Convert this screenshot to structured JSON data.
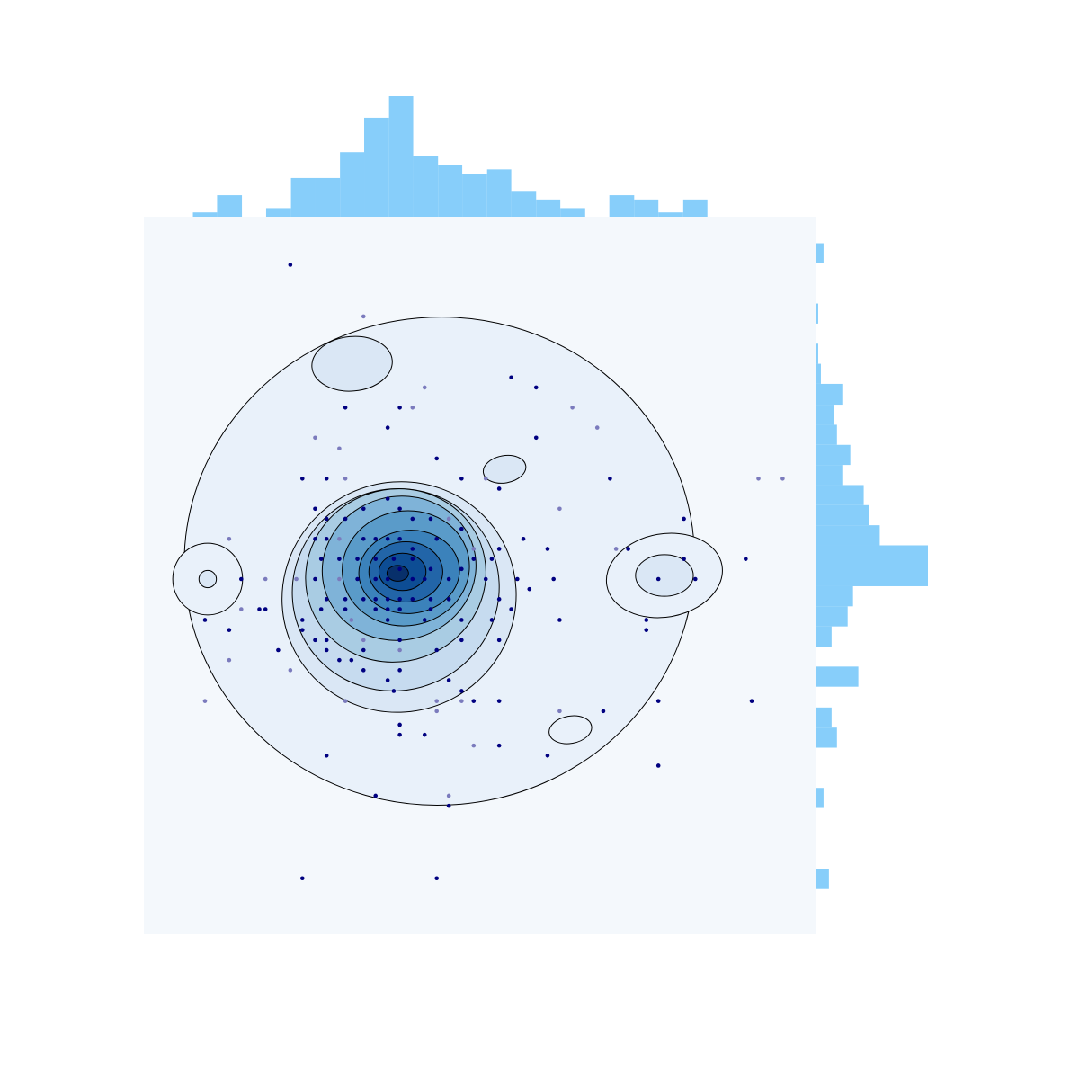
{
  "chart_data": {
    "type": "scatter",
    "title": "",
    "xlabel": "",
    "ylabel": "",
    "grid": false,
    "legend": "none",
    "colors": {
      "plot_background": "#f4f8fc",
      "histogram": "#87cefa",
      "point_dark": "#000080",
      "point_light": "#7b7bbd",
      "contour_line": "#000000",
      "density_levels": [
        "#e9f1fa",
        "#dae7f5",
        "#c6dbef",
        "#a9cce3",
        "#7fb3d8",
        "#5a9bc9",
        "#3b82bb",
        "#2265a8",
        "#0d4d94",
        "#08306b"
      ]
    },
    "xlim": [
      0,
      100
    ],
    "ylim": [
      0,
      100
    ],
    "points": [
      {
        "x": 21.8,
        "y": 93.3,
        "shade": "dark"
      },
      {
        "x": 32.7,
        "y": 86.1,
        "shade": "light"
      },
      {
        "x": 54.7,
        "y": 77.6,
        "shade": "dark"
      },
      {
        "x": 58.4,
        "y": 76.2,
        "shade": "dark"
      },
      {
        "x": 41.8,
        "y": 76.2,
        "shade": "light"
      },
      {
        "x": 63.8,
        "y": 73.4,
        "shade": "light"
      },
      {
        "x": 67.5,
        "y": 70.6,
        "shade": "light"
      },
      {
        "x": 30.0,
        "y": 73.4,
        "shade": "dark"
      },
      {
        "x": 38.1,
        "y": 73.4,
        "shade": "dark"
      },
      {
        "x": 40.0,
        "y": 73.4,
        "shade": "light"
      },
      {
        "x": 36.3,
        "y": 70.6,
        "shade": "dark"
      },
      {
        "x": 25.5,
        "y": 69.2,
        "shade": "light"
      },
      {
        "x": 29.1,
        "y": 67.7,
        "shade": "light"
      },
      {
        "x": 58.4,
        "y": 69.2,
        "shade": "dark"
      },
      {
        "x": 43.6,
        "y": 66.3,
        "shade": "dark"
      },
      {
        "x": 47.3,
        "y": 63.5,
        "shade": "dark"
      },
      {
        "x": 50.9,
        "y": 63.5,
        "shade": "light"
      },
      {
        "x": 52.9,
        "y": 62.1,
        "shade": "dark"
      },
      {
        "x": 23.6,
        "y": 63.5,
        "shade": "dark"
      },
      {
        "x": 27.2,
        "y": 63.5,
        "shade": "dark"
      },
      {
        "x": 30.0,
        "y": 63.5,
        "shade": "light"
      },
      {
        "x": 69.4,
        "y": 63.5,
        "shade": "dark"
      },
      {
        "x": 91.5,
        "y": 63.5,
        "shade": "light"
      },
      {
        "x": 61.9,
        "y": 59.3,
        "shade": "light"
      },
      {
        "x": 25.5,
        "y": 59.3,
        "shade": "dark"
      },
      {
        "x": 27.2,
        "y": 57.9,
        "shade": "dark"
      },
      {
        "x": 30.0,
        "y": 57.9,
        "shade": "dark"
      },
      {
        "x": 32.7,
        "y": 59.3,
        "shade": "dark"
      },
      {
        "x": 38.1,
        "y": 59.3,
        "shade": "dark"
      },
      {
        "x": 36.3,
        "y": 60.7,
        "shade": "dark"
      },
      {
        "x": 40.0,
        "y": 57.9,
        "shade": "dark"
      },
      {
        "x": 42.7,
        "y": 57.9,
        "shade": "dark"
      },
      {
        "x": 45.4,
        "y": 57.9,
        "shade": "light"
      },
      {
        "x": 47.3,
        "y": 56.5,
        "shade": "dark"
      },
      {
        "x": 56.5,
        "y": 55.1,
        "shade": "dark"
      },
      {
        "x": 60.1,
        "y": 53.7,
        "shade": "dark"
      },
      {
        "x": 80.4,
        "y": 57.9,
        "shade": "dark"
      },
      {
        "x": 25.5,
        "y": 55.1,
        "shade": "dark"
      },
      {
        "x": 27.2,
        "y": 55.1,
        "shade": "dark"
      },
      {
        "x": 29.1,
        "y": 55.1,
        "shade": "light"
      },
      {
        "x": 32.7,
        "y": 55.1,
        "shade": "dark"
      },
      {
        "x": 34.5,
        "y": 55.1,
        "shade": "dark"
      },
      {
        "x": 36.3,
        "y": 55.1,
        "shade": "dark"
      },
      {
        "x": 38.1,
        "y": 55.1,
        "shade": "dark"
      },
      {
        "x": 40.0,
        "y": 53.7,
        "shade": "dark"
      },
      {
        "x": 43.6,
        "y": 55.1,
        "shade": "dark"
      },
      {
        "x": 49.1,
        "y": 53.7,
        "shade": "light"
      },
      {
        "x": 52.9,
        "y": 53.7,
        "shade": "dark"
      },
      {
        "x": 12.7,
        "y": 55.1,
        "shade": "light"
      },
      {
        "x": 26.4,
        "y": 52.3,
        "shade": "dark"
      },
      {
        "x": 29.1,
        "y": 52.3,
        "shade": "dark"
      },
      {
        "x": 31.8,
        "y": 52.3,
        "shade": "dark"
      },
      {
        "x": 34.5,
        "y": 52.3,
        "shade": "dark"
      },
      {
        "x": 37.2,
        "y": 52.3,
        "shade": "dark"
      },
      {
        "x": 40.0,
        "y": 52.3,
        "shade": "dark"
      },
      {
        "x": 42.7,
        "y": 50.9,
        "shade": "dark"
      },
      {
        "x": 47.3,
        "y": 50.9,
        "shade": "dark"
      },
      {
        "x": 49.1,
        "y": 52.3,
        "shade": "dark"
      },
      {
        "x": 51.8,
        "y": 52.3,
        "shade": "dark"
      },
      {
        "x": 70.3,
        "y": 53.7,
        "shade": "light"
      },
      {
        "x": 72.1,
        "y": 53.7,
        "shade": "dark"
      },
      {
        "x": 80.4,
        "y": 52.3,
        "shade": "dark"
      },
      {
        "x": 89.6,
        "y": 52.3,
        "shade": "dark"
      },
      {
        "x": 25.5,
        "y": 49.5,
        "shade": "dark"
      },
      {
        "x": 29.1,
        "y": 49.5,
        "shade": "light"
      },
      {
        "x": 31.8,
        "y": 49.5,
        "shade": "dark"
      },
      {
        "x": 34.5,
        "y": 49.5,
        "shade": "dark"
      },
      {
        "x": 36.3,
        "y": 49.5,
        "shade": "dark"
      },
      {
        "x": 38.1,
        "y": 50.9,
        "shade": "dark"
      },
      {
        "x": 40.0,
        "y": 49.5,
        "shade": "dark"
      },
      {
        "x": 41.8,
        "y": 49.5,
        "shade": "dark"
      },
      {
        "x": 45.4,
        "y": 49.5,
        "shade": "dark"
      },
      {
        "x": 50.9,
        "y": 49.5,
        "shade": "dark"
      },
      {
        "x": 55.6,
        "y": 49.5,
        "shade": "dark"
      },
      {
        "x": 57.4,
        "y": 48.1,
        "shade": "dark"
      },
      {
        "x": 61.0,
        "y": 49.5,
        "shade": "dark"
      },
      {
        "x": 14.5,
        "y": 49.5,
        "shade": "dark"
      },
      {
        "x": 18.1,
        "y": 49.5,
        "shade": "light"
      },
      {
        "x": 22.7,
        "y": 49.5,
        "shade": "light"
      },
      {
        "x": 76.6,
        "y": 49.5,
        "shade": "dark"
      },
      {
        "x": 82.1,
        "y": 49.5,
        "shade": "dark"
      },
      {
        "x": 27.2,
        "y": 46.7,
        "shade": "dark"
      },
      {
        "x": 30.0,
        "y": 46.7,
        "shade": "dark"
      },
      {
        "x": 32.7,
        "y": 46.7,
        "shade": "dark"
      },
      {
        "x": 34.5,
        "y": 46.7,
        "shade": "dark"
      },
      {
        "x": 36.3,
        "y": 46.7,
        "shade": "dark"
      },
      {
        "x": 38.1,
        "y": 46.7,
        "shade": "dark"
      },
      {
        "x": 40.0,
        "y": 46.7,
        "shade": "dark"
      },
      {
        "x": 42.7,
        "y": 46.7,
        "shade": "dark"
      },
      {
        "x": 45.4,
        "y": 46.7,
        "shade": "dark"
      },
      {
        "x": 52.9,
        "y": 46.7,
        "shade": "dark"
      },
      {
        "x": 14.5,
        "y": 45.3,
        "shade": "light"
      },
      {
        "x": 18.1,
        "y": 45.3,
        "shade": "dark"
      },
      {
        "x": 26.4,
        "y": 45.3,
        "shade": "dark"
      },
      {
        "x": 30.0,
        "y": 45.3,
        "shade": "dark"
      },
      {
        "x": 34.5,
        "y": 45.3,
        "shade": "dark"
      },
      {
        "x": 36.3,
        "y": 45.3,
        "shade": "dark"
      },
      {
        "x": 38.1,
        "y": 45.3,
        "shade": "dark"
      },
      {
        "x": 42.7,
        "y": 45.3,
        "shade": "dark"
      },
      {
        "x": 54.7,
        "y": 45.3,
        "shade": "dark"
      },
      {
        "x": 9.1,
        "y": 43.8,
        "shade": "dark"
      },
      {
        "x": 17.2,
        "y": 45.3,
        "shade": "dark"
      },
      {
        "x": 23.6,
        "y": 43.8,
        "shade": "dark"
      },
      {
        "x": 30.9,
        "y": 43.8,
        "shade": "light"
      },
      {
        "x": 36.3,
        "y": 43.8,
        "shade": "dark"
      },
      {
        "x": 41.8,
        "y": 43.8,
        "shade": "dark"
      },
      {
        "x": 47.3,
        "y": 43.8,
        "shade": "dark"
      },
      {
        "x": 51.8,
        "y": 43.8,
        "shade": "dark"
      },
      {
        "x": 61.9,
        "y": 43.8,
        "shade": "dark"
      },
      {
        "x": 74.8,
        "y": 43.8,
        "shade": "dark"
      },
      {
        "x": 12.7,
        "y": 42.4,
        "shade": "dark"
      },
      {
        "x": 23.6,
        "y": 42.4,
        "shade": "dark"
      },
      {
        "x": 25.5,
        "y": 41.0,
        "shade": "dark"
      },
      {
        "x": 27.2,
        "y": 41.0,
        "shade": "dark"
      },
      {
        "x": 32.7,
        "y": 41.0,
        "shade": "light"
      },
      {
        "x": 38.1,
        "y": 41.0,
        "shade": "dark"
      },
      {
        "x": 47.3,
        "y": 41.0,
        "shade": "dark"
      },
      {
        "x": 52.9,
        "y": 41.0,
        "shade": "dark"
      },
      {
        "x": 74.8,
        "y": 42.4,
        "shade": "dark"
      },
      {
        "x": 20.0,
        "y": 39.6,
        "shade": "dark"
      },
      {
        "x": 27.2,
        "y": 39.6,
        "shade": "dark"
      },
      {
        "x": 32.7,
        "y": 39.6,
        "shade": "dark"
      },
      {
        "x": 38.1,
        "y": 39.6,
        "shade": "light"
      },
      {
        "x": 43.6,
        "y": 39.6,
        "shade": "dark"
      },
      {
        "x": 12.7,
        "y": 38.2,
        "shade": "light"
      },
      {
        "x": 29.1,
        "y": 38.2,
        "shade": "dark"
      },
      {
        "x": 30.9,
        "y": 38.2,
        "shade": "dark"
      },
      {
        "x": 38.1,
        "y": 36.8,
        "shade": "dark"
      },
      {
        "x": 21.8,
        "y": 36.8,
        "shade": "light"
      },
      {
        "x": 32.7,
        "y": 36.8,
        "shade": "dark"
      },
      {
        "x": 36.3,
        "y": 35.4,
        "shade": "dark"
      },
      {
        "x": 45.4,
        "y": 35.4,
        "shade": "dark"
      },
      {
        "x": 37.2,
        "y": 33.9,
        "shade": "dark"
      },
      {
        "x": 47.3,
        "y": 33.9,
        "shade": "dark"
      },
      {
        "x": 9.1,
        "y": 32.5,
        "shade": "light"
      },
      {
        "x": 30.0,
        "y": 32.5,
        "shade": "light"
      },
      {
        "x": 43.6,
        "y": 32.5,
        "shade": "light"
      },
      {
        "x": 47.3,
        "y": 32.5,
        "shade": "light"
      },
      {
        "x": 49.1,
        "y": 32.5,
        "shade": "dark"
      },
      {
        "x": 52.9,
        "y": 32.5,
        "shade": "dark"
      },
      {
        "x": 76.6,
        "y": 32.5,
        "shade": "dark"
      },
      {
        "x": 90.5,
        "y": 32.5,
        "shade": "dark"
      },
      {
        "x": 43.6,
        "y": 31.1,
        "shade": "light"
      },
      {
        "x": 61.9,
        "y": 31.1,
        "shade": "light"
      },
      {
        "x": 68.4,
        "y": 31.1,
        "shade": "dark"
      },
      {
        "x": 38.1,
        "y": 29.2,
        "shade": "dark"
      },
      {
        "x": 38.1,
        "y": 27.8,
        "shade": "dark"
      },
      {
        "x": 41.8,
        "y": 27.8,
        "shade": "dark"
      },
      {
        "x": 49.1,
        "y": 26.3,
        "shade": "light"
      },
      {
        "x": 52.9,
        "y": 26.3,
        "shade": "dark"
      },
      {
        "x": 27.2,
        "y": 24.9,
        "shade": "dark"
      },
      {
        "x": 60.1,
        "y": 24.9,
        "shade": "dark"
      },
      {
        "x": 76.6,
        "y": 23.5,
        "shade": "dark"
      },
      {
        "x": 34.5,
        "y": 19.3,
        "shade": "dark"
      },
      {
        "x": 45.4,
        "y": 19.3,
        "shade": "light"
      },
      {
        "x": 45.4,
        "y": 17.9,
        "shade": "dark"
      },
      {
        "x": 23.6,
        "y": 7.8,
        "shade": "dark"
      },
      {
        "x": 43.6,
        "y": 7.8,
        "shade": "dark"
      },
      {
        "x": 95.1,
        "y": 63.5,
        "shade": "light"
      }
    ],
    "density_contours": [
      {
        "level": 1,
        "center": [
          44.0,
          52.0
        ],
        "rx": 38.0,
        "ry": 34.0,
        "rot": -5
      },
      {
        "level": 1,
        "center": [
          9.5,
          49.5
        ],
        "rx": 5.2,
        "ry": 5.0,
        "rot": 0
      },
      {
        "level": 1,
        "center": [
          77.5,
          50.0
        ],
        "rx": 8.7,
        "ry": 5.8,
        "rot": -10
      },
      {
        "level": 1,
        "center": [
          63.5,
          28.5
        ],
        "rx": 3.2,
        "ry": 1.9,
        "rot": -10
      },
      {
        "level": 2,
        "center": [
          9.5,
          49.5
        ],
        "rx": 1.3,
        "ry": 1.2,
        "rot": 0
      },
      {
        "level": 2,
        "center": [
          77.5,
          50.0
        ],
        "rx": 4.3,
        "ry": 2.9,
        "rot": 0
      },
      {
        "level": 2,
        "center": [
          31.0,
          79.5
        ],
        "rx": 6.0,
        "ry": 3.8,
        "rot": -5
      },
      {
        "level": 2,
        "center": [
          53.7,
          64.8
        ],
        "rx": 3.2,
        "ry": 1.9,
        "rot": -10
      },
      {
        "level": 2,
        "center": [
          38.0,
          47.0
        ],
        "rx": 17.5,
        "ry": 16.0,
        "rot": -25
      },
      {
        "level": 3,
        "center": [
          37.5,
          48.0
        ],
        "rx": 15.5,
        "ry": 14.0,
        "rot": -25
      },
      {
        "level": 4,
        "center": [
          37.5,
          50.0
        ],
        "rx": 13.5,
        "ry": 12.0,
        "rot": -20
      },
      {
        "level": 5,
        "center": [
          38.0,
          51.0
        ],
        "rx": 11.5,
        "ry": 10.0,
        "rot": -15
      },
      {
        "level": 6,
        "center": [
          39.0,
          51.0
        ],
        "rx": 9.5,
        "ry": 8.0,
        "rot": -10
      },
      {
        "level": 7,
        "center": [
          39.5,
          50.5
        ],
        "rx": 7.5,
        "ry": 5.8,
        "rot": -5
      },
      {
        "level": 8,
        "center": [
          39.0,
          50.5
        ],
        "rx": 5.5,
        "ry": 4.2,
        "rot": 0
      },
      {
        "level": 9,
        "center": [
          38.5,
          50.5
        ],
        "rx": 3.5,
        "ry": 2.6,
        "rot": 0
      },
      {
        "level": 10,
        "center": [
          37.8,
          50.3
        ],
        "rx": 1.6,
        "ry": 1.1,
        "rot": 0
      }
    ],
    "x_marginal": {
      "bin_edges": [
        7.3,
        10.9,
        14.6,
        18.2,
        21.9,
        25.5,
        29.2,
        32.8,
        36.5,
        40.1,
        43.8,
        47.4,
        51.1,
        54.7,
        58.4,
        62.0,
        65.7,
        69.3,
        73.0,
        76.6,
        80.3,
        83.9
      ],
      "counts": [
        1,
        5,
        0,
        2,
        9,
        9,
        15,
        23,
        28,
        14,
        12,
        10,
        11,
        6,
        4,
        2,
        0,
        5,
        4,
        1,
        4
      ]
    },
    "y_marginal": {
      "bin_edges": [
        6.3,
        9.1,
        11.9,
        14.7,
        17.6,
        20.4,
        23.2,
        26.0,
        28.8,
        31.6,
        34.5,
        37.3,
        40.1,
        42.9,
        45.7,
        48.5,
        51.3,
        54.2,
        57.0,
        59.8,
        62.6,
        65.4,
        68.2,
        71.0,
        73.8,
        76.7,
        79.5,
        82.3,
        85.1,
        87.9,
        90.7,
        93.5,
        96.3
      ],
      "counts": [
        5,
        0,
        0,
        0,
        3,
        0,
        0,
        8,
        6,
        0,
        16,
        0,
        6,
        12,
        14,
        42,
        42,
        24,
        20,
        18,
        10,
        13,
        8,
        7,
        10,
        2,
        1,
        0,
        1,
        0,
        0,
        3
      ]
    }
  }
}
